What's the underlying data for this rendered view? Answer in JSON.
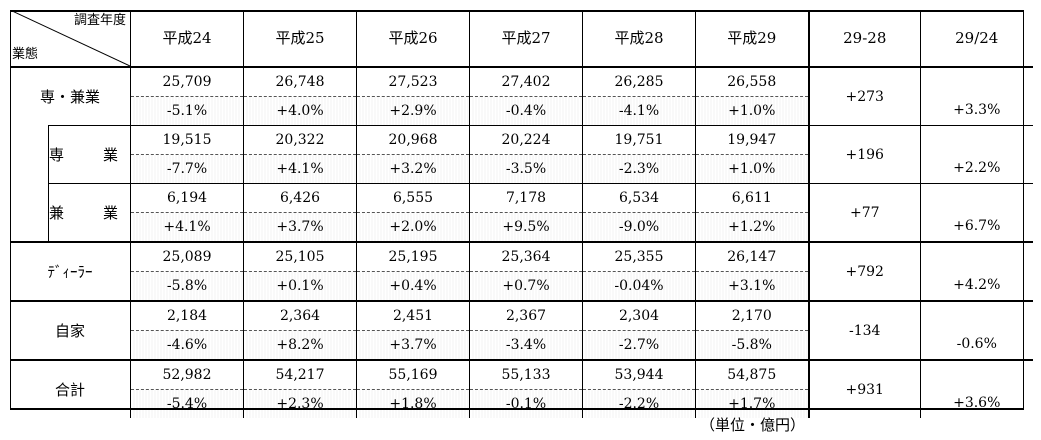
{
  "header": {
    "corner_top": "調査年度",
    "corner_bottom": "業態",
    "years": [
      "平成24",
      "平成25",
      "平成26",
      "平成27",
      "平成28",
      "平成29"
    ],
    "diff_label": "29-28",
    "ratio_label": "29/24"
  },
  "rows": [
    {
      "label": "専・兼業",
      "values": [
        "25,709",
        "26,748",
        "27,523",
        "27,402",
        "26,285",
        "26,558"
      ],
      "pct": [
        "-5.1%",
        "+4.0%",
        "+2.9%",
        "-0.4%",
        "-4.1%",
        "+1.0%"
      ],
      "diff": "+273",
      "ratio": "+3.3%"
    },
    {
      "label": "専　業",
      "values": [
        "19,515",
        "20,322",
        "20,968",
        "20,224",
        "19,751",
        "19,947"
      ],
      "pct": [
        "-7.7%",
        "+4.1%",
        "+3.2%",
        "-3.5%",
        "-2.3%",
        "+1.0%"
      ],
      "diff": "+196",
      "ratio": "+2.2%"
    },
    {
      "label": "兼　業",
      "values": [
        "6,194",
        "6,426",
        "6,555",
        "7,178",
        "6,534",
        "6,611"
      ],
      "pct": [
        "+4.1%",
        "+3.7%",
        "+2.0%",
        "+9.5%",
        "-9.0%",
        "+1.2%"
      ],
      "diff": "+77",
      "ratio": "+6.7%"
    },
    {
      "label": "ﾃﾞｨｰﾗｰ",
      "values": [
        "25,089",
        "25,105",
        "25,195",
        "25,364",
        "25,355",
        "26,147"
      ],
      "pct": [
        "-5.8%",
        "+0.1%",
        "+0.4%",
        "+0.7%",
        "-0.04%",
        "+3.1%"
      ],
      "diff": "+792",
      "ratio": "+4.2%"
    },
    {
      "label": "自家",
      "values": [
        "2,184",
        "2,364",
        "2,451",
        "2,367",
        "2,304",
        "2,170"
      ],
      "pct": [
        "-4.6%",
        "+8.2%",
        "+3.7%",
        "-3.4%",
        "-2.7%",
        "-5.8%"
      ],
      "diff": "-134",
      "ratio": "-0.6%"
    },
    {
      "label": "合計",
      "values": [
        "52,982",
        "54,217",
        "55,169",
        "55,133",
        "53,944",
        "54,875"
      ],
      "pct": [
        "-5.4%",
        "+2.3%",
        "+1.8%",
        "-0.1%",
        "-2.2%",
        "+1.7%"
      ],
      "diff": "+931",
      "ratio": "+3.6%"
    }
  ],
  "unit_note": "（単位・億円）"
}
